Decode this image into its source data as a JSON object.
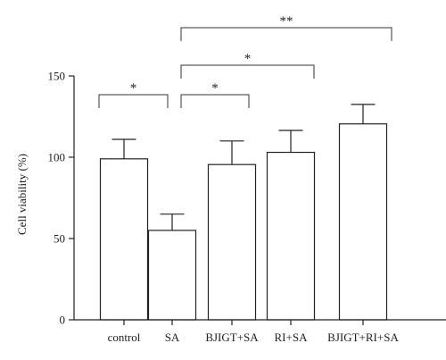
{
  "chart_data": {
    "type": "bar",
    "categories": [
      "control",
      "SA",
      "BJIGT+SA",
      "RI+SA",
      "BJIGT+RI+SA"
    ],
    "values": [
      99,
      55,
      95.5,
      103,
      120.5
    ],
    "errors": [
      12,
      10,
      14.5,
      13.5,
      12
    ],
    "ylabel": "Cell viability (%)",
    "ylim": [
      0,
      150
    ],
    "yticks": [
      0,
      50,
      100,
      150
    ],
    "significance": [
      {
        "from": 0,
        "to": 1,
        "label": "*"
      },
      {
        "from": 1,
        "to": 2,
        "label": "*"
      },
      {
        "from": 1,
        "to": 3,
        "label": "*"
      },
      {
        "from": 1,
        "to": 4,
        "label": "**"
      }
    ]
  }
}
